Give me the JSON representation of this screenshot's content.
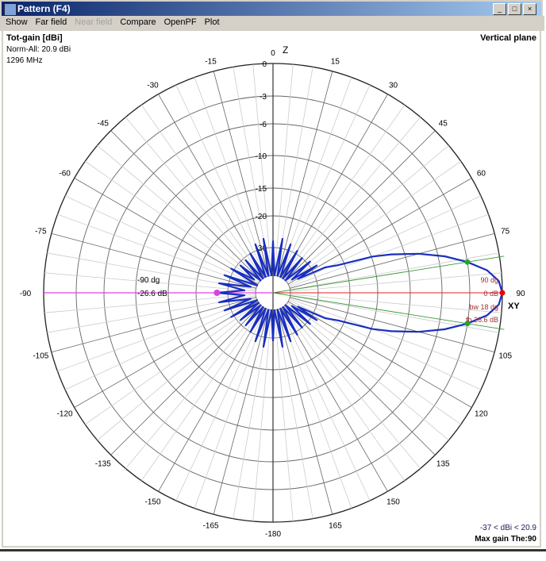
{
  "window": {
    "title": "Pattern  (F4)",
    "min_label": "_",
    "max_label": "□",
    "close_label": "×"
  },
  "menu": [
    {
      "label": "Show",
      "enabled": true
    },
    {
      "label": "Far field",
      "enabled": true
    },
    {
      "label": "Near field",
      "enabled": false
    },
    {
      "label": "Compare",
      "enabled": true
    },
    {
      "label": "OpenPF",
      "enabled": true
    },
    {
      "label": "Plot",
      "enabled": true
    }
  ],
  "info": {
    "quantity": "Tot-gain [dBi]",
    "norm": "Norm-All: 20.9 dBi",
    "frequency": "1296 MHz",
    "plane": "Vertical plane",
    "range": "-37 < dBi < 20.9",
    "max_gain": "Max gain The:90"
  },
  "chart_data": {
    "type": "polar",
    "grid": true,
    "zero_direction": "top",
    "angle_direction": "clockwise",
    "axis_label_top": "Z",
    "axis_label_right": "XY",
    "angle_ticks": [
      0,
      15,
      30,
      45,
      60,
      75,
      90,
      105,
      120,
      135,
      150,
      165,
      -180,
      -165,
      -150,
      -135,
      -120,
      -105,
      -90,
      -75,
      -60,
      -45,
      -30,
      -15
    ],
    "ring_ticks": [
      0,
      -3,
      -6,
      -10,
      -15,
      -20,
      -30
    ],
    "rlim": [
      -40,
      0
    ],
    "colors": {
      "pattern": "#1a2fbf",
      "main": "#e02020",
      "back": "#e040e0",
      "beamwidth": "#3a9a3a",
      "annotation": "#a03030"
    },
    "series": [
      {
        "points": [
          [
            -180,
            -29
          ],
          [
            -175,
            -40
          ],
          [
            -170,
            -27
          ],
          [
            -165,
            -40
          ],
          [
            -160,
            -28
          ],
          [
            -155,
            -40
          ],
          [
            -150,
            -30
          ],
          [
            -145,
            -40
          ],
          [
            -140,
            -31
          ],
          [
            -135,
            -40
          ],
          [
            -130,
            -31
          ],
          [
            -125,
            -40
          ],
          [
            -120,
            -29
          ],
          [
            -115,
            -40
          ],
          [
            -110,
            -28
          ],
          [
            -105,
            -38
          ],
          [
            -100,
            -27
          ],
          [
            -95,
            -36
          ],
          [
            -90,
            -26.6
          ],
          [
            -85,
            -36
          ],
          [
            -80,
            -27
          ],
          [
            -75,
            -38
          ],
          [
            -70,
            -28
          ],
          [
            -65,
            -40
          ],
          [
            -60,
            -29
          ],
          [
            -55,
            -38
          ],
          [
            -50,
            -31
          ],
          [
            -45,
            -40
          ],
          [
            -40,
            -31
          ],
          [
            -35,
            -40
          ],
          [
            -30,
            -30
          ],
          [
            -25,
            -40
          ],
          [
            -20,
            -28
          ],
          [
            -15,
            -40
          ],
          [
            -10,
            -27
          ],
          [
            -5,
            -40
          ],
          [
            0,
            -28
          ],
          [
            5,
            -40
          ],
          [
            10,
            -27
          ],
          [
            15,
            -40
          ],
          [
            20,
            -28
          ],
          [
            25,
            -40
          ],
          [
            30,
            -29
          ],
          [
            35,
            -40
          ],
          [
            40,
            -30
          ],
          [
            45,
            -40
          ],
          [
            50,
            -29
          ],
          [
            55,
            -38
          ],
          [
            58,
            -28
          ],
          [
            61,
            -36
          ],
          [
            64,
            -26
          ],
          [
            67,
            -22
          ],
          [
            70,
            -14.8
          ],
          [
            72,
            -12
          ],
          [
            75,
            -8.3
          ],
          [
            78,
            -5.3
          ],
          [
            81,
            -3
          ],
          [
            84,
            -1.3
          ],
          [
            87,
            -0.3
          ],
          [
            90,
            0
          ],
          [
            93,
            -0.3
          ],
          [
            96,
            -1.3
          ],
          [
            99,
            -3
          ],
          [
            102,
            -5.3
          ],
          [
            105,
            -8.3
          ],
          [
            108,
            -12
          ],
          [
            110,
            -14.8
          ],
          [
            113,
            -22
          ],
          [
            116,
            -26
          ],
          [
            119,
            -36
          ],
          [
            122,
            -28
          ],
          [
            125,
            -38
          ],
          [
            130,
            -29
          ],
          [
            135,
            -40
          ],
          [
            140,
            -30
          ],
          [
            145,
            -40
          ],
          [
            150,
            -29
          ],
          [
            155,
            -40
          ],
          [
            160,
            -28
          ],
          [
            165,
            -40
          ],
          [
            170,
            -27
          ],
          [
            175,
            -40
          ],
          [
            180,
            -29
          ]
        ]
      }
    ],
    "main_lobe": {
      "angle": 90,
      "gain_db": 0,
      "beamwidth_deg": 18,
      "half_power_angles": [
        81,
        99
      ],
      "labels": [
        "90 dg",
        "0 dB",
        "bw 18 dg",
        "fb 26.6 dB"
      ]
    },
    "back_lobe": {
      "angle": -90,
      "gain_db": -26.6,
      "labels": [
        "-90 dg",
        "-26.6 dB"
      ]
    }
  }
}
